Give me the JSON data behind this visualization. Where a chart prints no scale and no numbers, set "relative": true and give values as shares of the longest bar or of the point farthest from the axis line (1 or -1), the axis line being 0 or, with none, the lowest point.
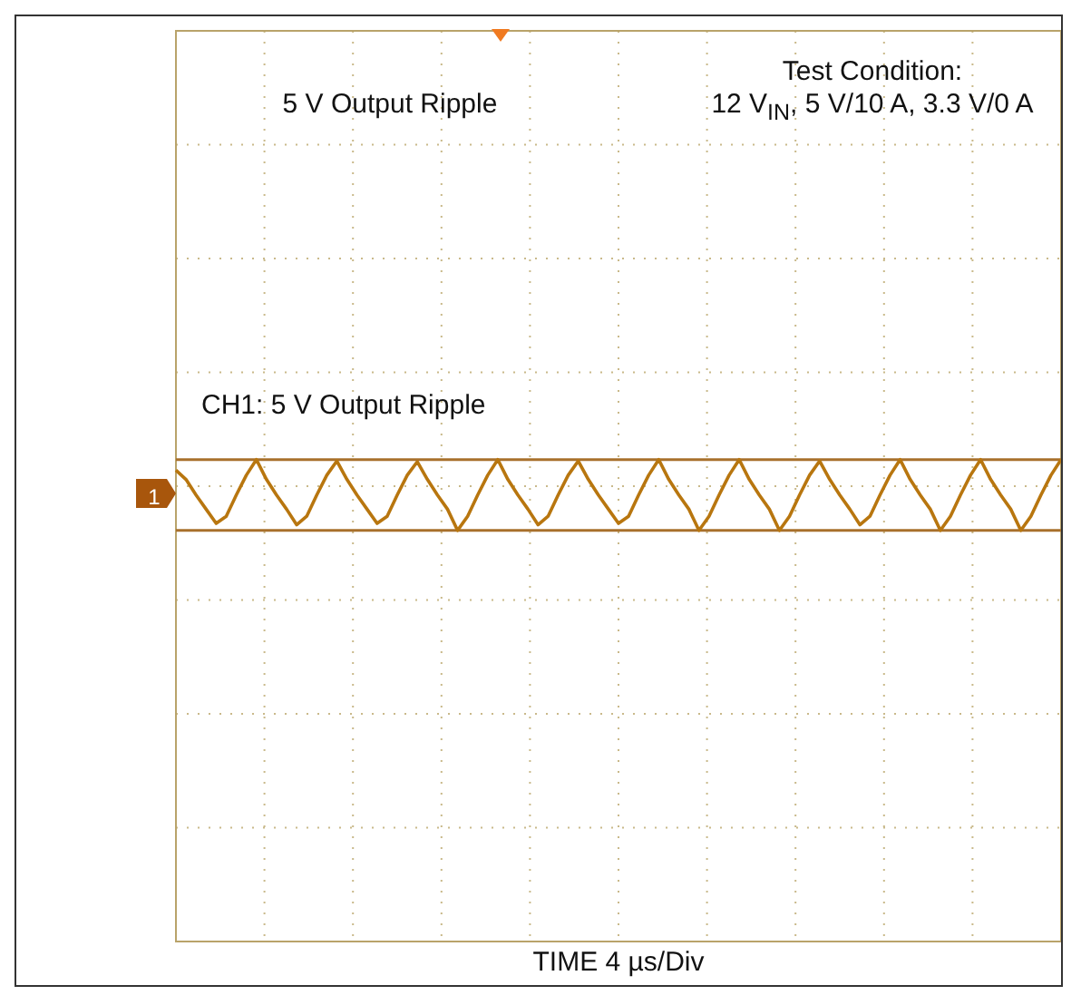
{
  "chart_data": {
    "type": "line",
    "relative": true,
    "color": "#b8760f",
    "grid": true,
    "marker": "none",
    "line_style": "solid",
    "annotations": [
      "5 V Output Ripple",
      "Test Condition:",
      "12 V$_{IN}$, 5 V/10 A, 3.3 V/0 A",
      "CH1: 5 V Output Ripple",
      "1",
      "TIME 4 µs/Div"
    ],
    "ref_lines": [
      {
        "axis": "y",
        "value": 1,
        "color": "#a8702c"
      },
      {
        "axis": "y",
        "value": 0,
        "color": "#a8702c"
      }
    ],
    "categories": [
      null,
      null,
      null,
      null,
      null,
      null,
      null,
      null,
      null,
      null,
      null,
      null,
      null,
      null,
      null,
      null,
      null,
      null,
      null,
      null,
      null,
      null,
      null,
      null,
      null,
      null,
      null,
      null,
      null,
      null,
      null,
      null,
      null,
      null,
      null,
      null,
      null,
      null,
      null,
      null,
      null,
      null,
      null,
      null,
      null,
      null,
      null,
      null,
      null,
      null,
      null,
      null,
      null,
      null,
      null,
      null,
      null,
      null,
      null,
      null,
      null,
      null,
      null,
      null,
      null,
      null,
      null,
      null,
      null,
      null,
      null,
      null,
      null,
      null,
      null,
      null,
      null,
      null,
      null,
      null,
      null,
      null,
      null,
      null,
      null,
      null,
      null,
      null,
      null
    ],
    "values": [
      0.85,
      0.72,
      0.5,
      0.3,
      0.1,
      0.2,
      0.5,
      0.78,
      1,
      0.72,
      0.5,
      0.3,
      0.08,
      0.2,
      0.5,
      0.78,
      0.98,
      0.72,
      0.5,
      0.3,
      0.1,
      0.2,
      0.5,
      0.78,
      0.97,
      0.72,
      0.5,
      0.3,
      0,
      0.2,
      0.5,
      0.78,
      1,
      0.72,
      0.5,
      0.3,
      0.08,
      0.2,
      0.5,
      0.78,
      0.98,
      0.72,
      0.5,
      0.3,
      0.1,
      0.2,
      0.5,
      0.78,
      1,
      0.72,
      0.5,
      0.3,
      0,
      0.2,
      0.5,
      0.78,
      1,
      0.72,
      0.5,
      0.3,
      0,
      0.2,
      0.5,
      0.78,
      0.98,
      0.72,
      0.5,
      0.3,
      0.08,
      0.2,
      0.5,
      0.78,
      1,
      0.72,
      0.5,
      0.3,
      0,
      0.2,
      0.5,
      0.78,
      1,
      0.72,
      0.5,
      0.3,
      0,
      0.2,
      0.5,
      0.78,
      1
    ]
  }
}
